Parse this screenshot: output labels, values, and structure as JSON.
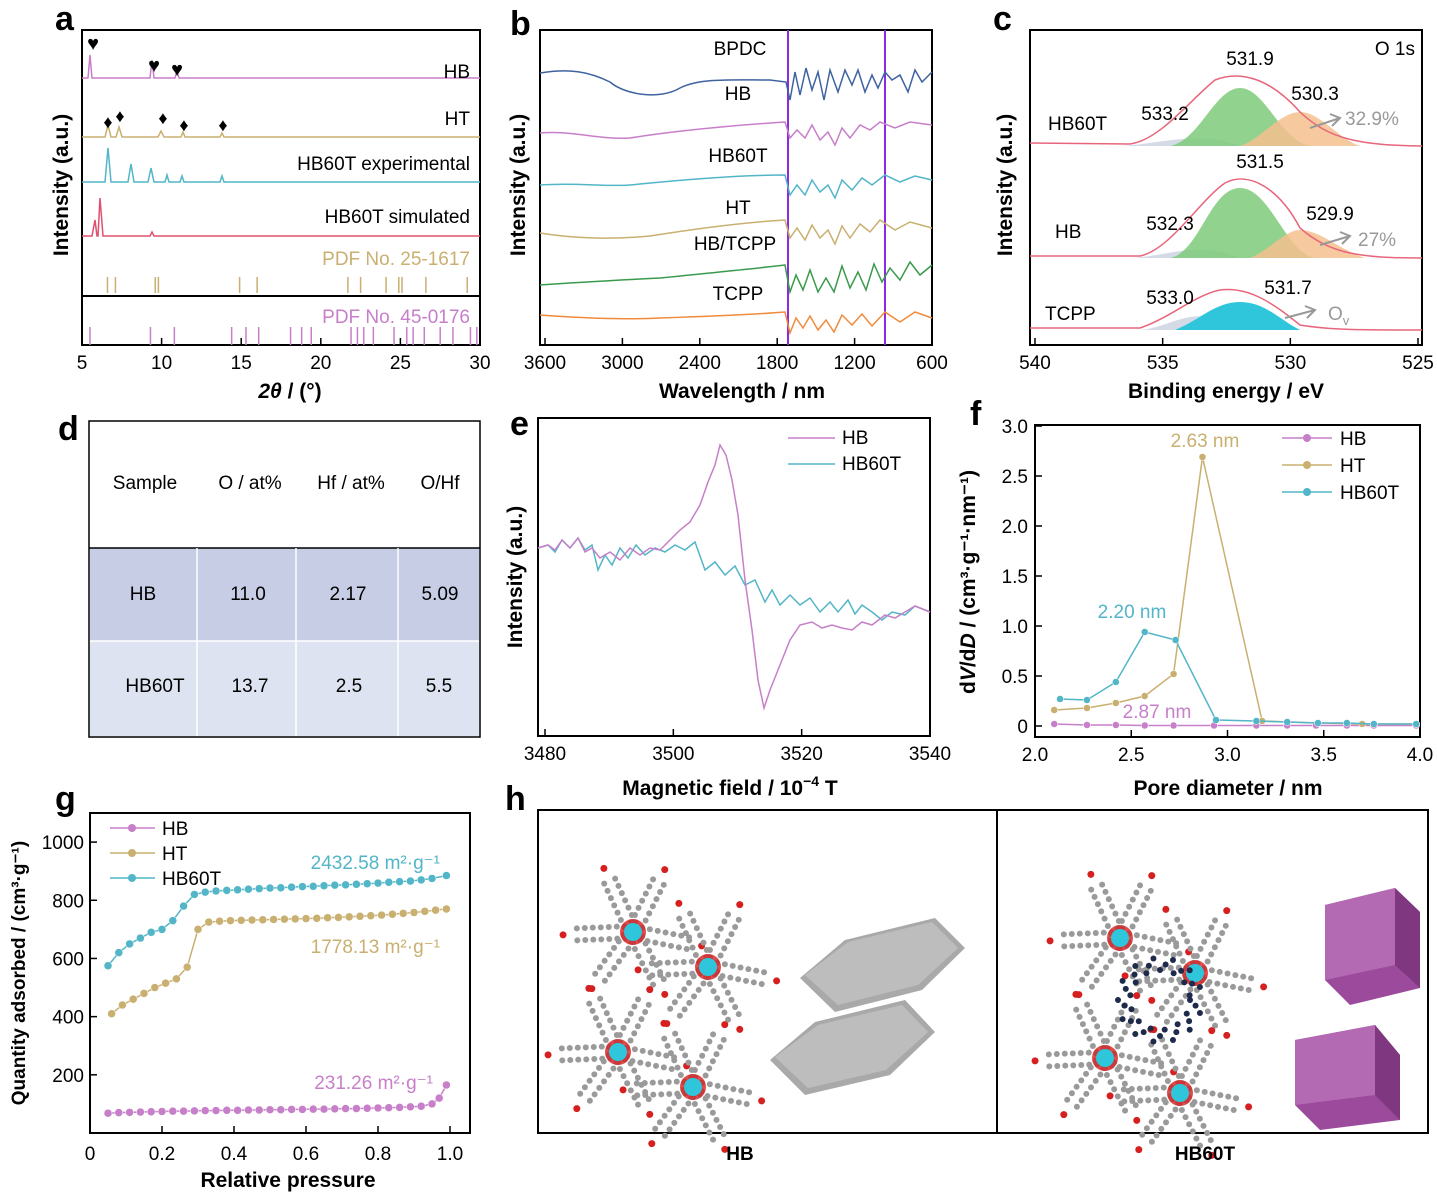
{
  "colors": {
    "hb": "#c77fc9",
    "ht": "#c9b070",
    "hb60t": "#52b5c8",
    "sim": "#e0506e",
    "bpdc": "#3f63a0",
    "hbtcpp": "#3a9a4c",
    "tcpp": "#f08b3c",
    "vline": "#8a2be2",
    "xps_env": "#e8667c",
    "xps_green": "#7ecb7a",
    "xps_orange": "#f5c08e",
    "xps_gray": "#c9d2e0",
    "xps_cyan": "#2fc6dc",
    "arrow": "#999999",
    "table_hdr": "#c7cde4",
    "table_row2": "#dde3f0"
  },
  "panels": {
    "a": {
      "letter": "a",
      "ylabel": "Intensity (a.u.)",
      "xlabel_italic": "2θ",
      "xlabel_rest": " / (°)",
      "ticks": [
        "5",
        "10",
        "15",
        "20",
        "25",
        "30"
      ],
      "labels": [
        "HB",
        "HT",
        "HB60T experimental",
        "HB60T simulated",
        "PDF No. 25-1617",
        "PDF No. 45-0176"
      ],
      "heart": "♥",
      "diamond": "♦"
    },
    "b": {
      "letter": "b",
      "ylabel": "Intensity (a.u.)",
      "xlabel": "Wavelength / nm",
      "ticks": [
        "3600",
        "3000",
        "2400",
        "1800",
        "1200",
        "600"
      ],
      "labels": [
        "BPDC",
        "HB",
        "HB60T",
        "HT",
        "HB/TCPP",
        "TCPP"
      ]
    },
    "c": {
      "letter": "c",
      "ylabel": "Intensity (a.u.)",
      "xlabel": "Binding energy / eV",
      "ticks": [
        "540",
        "535",
        "530",
        "525"
      ],
      "corner": "O 1s",
      "rows": [
        {
          "name": "HB60T",
          "peaks": [
            "533.2",
            "531.9",
            "530.3"
          ],
          "pct": "32.9%"
        },
        {
          "name": "HB",
          "peaks": [
            "532.3",
            "531.5",
            "529.9"
          ],
          "pct": "27%"
        },
        {
          "name": "TCPP",
          "peaks": [
            "533.0",
            "531.7"
          ],
          "ov": "O",
          "ov_sub": "v"
        }
      ]
    },
    "d": {
      "letter": "d",
      "headers": [
        "Sample",
        "O / at%",
        "Hf / at%",
        "O/Hf"
      ],
      "rows": [
        [
          "HB",
          "11.0",
          "2.17",
          "5.09"
        ],
        [
          "HB60T",
          "13.7",
          "2.5",
          "5.5"
        ]
      ]
    },
    "e": {
      "letter": "e",
      "ylabel": "Intensity (a.u.)",
      "xlabel_pre": "Magnetic field / 10",
      "xlabel_sup": "−4",
      "xlabel_post": " T",
      "ticks": [
        "3480",
        "3500",
        "3520",
        "3540"
      ],
      "legend": [
        "HB",
        "HB60T"
      ]
    },
    "f": {
      "letter": "f",
      "ylabel_pre": "d",
      "ylabel_v": "V",
      "ylabel_mid": "/d",
      "ylabel_d": "D",
      "ylabel_post": " / (cm³·g⁻¹·nm⁻¹)",
      "xlabel": "Pore diameter / nm",
      "xticks": [
        "2.0",
        "2.5",
        "3.0",
        "3.5",
        "4.0"
      ],
      "yticks": [
        "0",
        "0.5",
        "1.0",
        "1.5",
        "2.0",
        "2.5",
        "3.0"
      ],
      "legend": [
        "HB",
        "HT",
        "HB60T"
      ],
      "ann": [
        "2.63 nm",
        "2.20 nm",
        "2.87 nm"
      ]
    },
    "g": {
      "letter": "g",
      "ylabel": "Quantity adsorbed / (cm³·g⁻¹)",
      "xlabel": "Relative pressure",
      "xticks": [
        "0",
        "0.2",
        "0.4",
        "0.6",
        "0.8",
        "1.0"
      ],
      "yticks": [
        "200",
        "400",
        "600",
        "800",
        "1000"
      ],
      "legend": [
        "HB",
        "HT",
        "HB60T"
      ],
      "ann": [
        "2432.58 m²·g⁻¹",
        "1778.13 m²·g⁻¹",
        "231.26 m²·g⁻¹"
      ]
    },
    "h": {
      "letter": "h",
      "labels": [
        "HB",
        "HB60T"
      ]
    }
  },
  "chart_data": [
    {
      "type": "bar",
      "panel": "a",
      "title": "",
      "xlabel": "2θ / (°)",
      "ylabel": "Intensity (a.u.)",
      "xlim": [
        5,
        30
      ],
      "series": [
        {
          "name": "PDF No. 25-1617",
          "x": [
            6.6,
            7.1,
            9.6,
            9.8,
            14.9,
            16.0,
            21.7,
            22.5,
            24.1,
            24.9,
            25.1,
            26.6,
            29.2
          ]
        },
        {
          "name": "PDF No. 45-0176",
          "x": [
            5.5,
            9.3,
            10.8,
            14.4,
            15.3,
            16.1,
            18.1,
            18.8,
            19.4,
            21.9,
            22.3,
            22.7,
            23.3,
            24.6,
            25.4,
            25.8,
            26.5,
            27.5,
            28.3,
            29.4,
            29.8
          ]
        }
      ]
    },
    {
      "type": "line",
      "panel": "e",
      "title": "",
      "xlabel": "Magnetic field / 10⁻⁴ T",
      "ylabel": "Intensity (a.u.)",
      "xlim": [
        3480,
        3540
      ],
      "series": [
        {
          "name": "HB"
        },
        {
          "name": "HB60T"
        }
      ]
    },
    {
      "type": "line",
      "panel": "f",
      "title": "",
      "xlabel": "Pore diameter / nm",
      "ylabel": "dV/dD / (cm³·g⁻¹·nm⁻¹)",
      "xlim": [
        2.0,
        4.0
      ],
      "ylim": [
        -0.1,
        3.0
      ],
      "series": [
        {
          "name": "HB",
          "x": [
            2.1,
            2.27,
            2.42,
            2.57,
            2.72,
            2.93,
            3.15,
            3.31,
            3.46,
            3.62,
            3.76,
            3.98
          ],
          "y": [
            0.02,
            0.01,
            0.01,
            0.005,
            0.005,
            0.005,
            0.005,
            0.005,
            0.005,
            0.005,
            0.005,
            0.005
          ]
        },
        {
          "name": "HT",
          "x": [
            2.1,
            2.27,
            2.42,
            2.57,
            2.72,
            2.87,
            3.18,
            3.47,
            3.7,
            3.98
          ],
          "y": [
            0.16,
            0.18,
            0.23,
            0.3,
            0.52,
            2.69,
            0.05,
            0.03,
            0.02,
            0.02
          ]
        },
        {
          "name": "HB60T",
          "x": [
            2.13,
            2.27,
            2.42,
            2.57,
            2.73,
            2.94,
            3.15,
            3.31,
            3.47,
            3.62,
            3.76,
            3.98
          ],
          "y": [
            0.27,
            0.26,
            0.44,
            0.94,
            0.86,
            0.06,
            0.05,
            0.04,
            0.03,
            0.03,
            0.02,
            0.02
          ]
        }
      ]
    },
    {
      "type": "line",
      "panel": "g",
      "title": "",
      "xlabel": "Relative pressure",
      "ylabel": "Quantity adsorbed / (cm³·g⁻¹)",
      "xlim": [
        0,
        1.0
      ],
      "ylim": [
        0,
        1100
      ],
      "series": [
        {
          "name": "HB",
          "x": [
            0.05,
            0.08,
            0.11,
            0.14,
            0.17,
            0.2,
            0.23,
            0.26,
            0.29,
            0.32,
            0.35,
            0.38,
            0.41,
            0.44,
            0.47,
            0.5,
            0.53,
            0.56,
            0.59,
            0.62,
            0.65,
            0.68,
            0.71,
            0.74,
            0.77,
            0.8,
            0.83,
            0.86,
            0.89,
            0.92,
            0.95,
            0.97,
            0.99
          ],
          "y": [
            68,
            70,
            71,
            72,
            73,
            74,
            75,
            75,
            76,
            77,
            77,
            78,
            78,
            79,
            79,
            80,
            80,
            81,
            81,
            82,
            82,
            83,
            84,
            84,
            85,
            86,
            87,
            88,
            90,
            92,
            100,
            120,
            165
          ]
        },
        {
          "name": "HT",
          "x": [
            0.06,
            0.09,
            0.12,
            0.15,
            0.18,
            0.21,
            0.24,
            0.27,
            0.3,
            0.33,
            0.36,
            0.39,
            0.42,
            0.45,
            0.48,
            0.51,
            0.54,
            0.57,
            0.6,
            0.63,
            0.66,
            0.69,
            0.72,
            0.75,
            0.78,
            0.81,
            0.84,
            0.87,
            0.9,
            0.93,
            0.96,
            0.99
          ],
          "y": [
            410,
            440,
            460,
            480,
            500,
            515,
            530,
            570,
            700,
            725,
            728,
            730,
            731,
            732,
            733,
            734,
            735,
            736,
            737,
            738,
            740,
            741,
            743,
            745,
            747,
            749,
            752,
            755,
            758,
            762,
            766,
            770
          ]
        },
        {
          "name": "HB60T",
          "x": [
            0.05,
            0.08,
            0.11,
            0.14,
            0.17,
            0.2,
            0.23,
            0.26,
            0.29,
            0.32,
            0.35,
            0.38,
            0.41,
            0.44,
            0.47,
            0.5,
            0.53,
            0.56,
            0.59,
            0.62,
            0.65,
            0.68,
            0.71,
            0.74,
            0.77,
            0.8,
            0.83,
            0.86,
            0.89,
            0.92,
            0.95,
            0.99
          ],
          "y": [
            575,
            620,
            650,
            670,
            690,
            700,
            730,
            780,
            820,
            828,
            832,
            834,
            836,
            838,
            840,
            842,
            843,
            845,
            847,
            848,
            850,
            852,
            853,
            855,
            857,
            859,
            862,
            864,
            866,
            870,
            875,
            885
          ]
        }
      ]
    }
  ]
}
